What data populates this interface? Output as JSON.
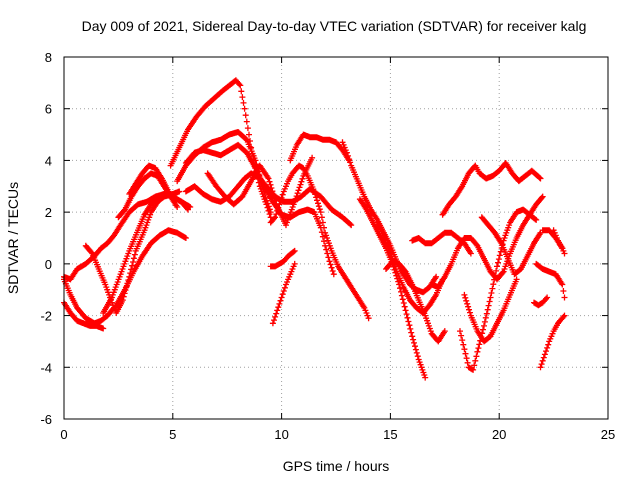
{
  "chart_data": {
    "type": "scatter",
    "title": "Day 009 of 2021, Sidereal Day-to-day VTEC variation (SDTVAR) for receiver kalg",
    "xlabel": "GPS time / hours",
    "ylabel": "SDTVAR / TECUs",
    "xlim": [
      0,
      25
    ],
    "ylim": [
      -6,
      8
    ],
    "xticks": [
      "0",
      "5",
      "10",
      "15",
      "20",
      "25"
    ],
    "yticks": [
      "-6",
      "-4",
      "-2",
      "0",
      "2",
      "4",
      "6",
      "8"
    ],
    "grid": true,
    "legend": "none",
    "marker": "plus",
    "color": "#ff0000",
    "series": [
      {
        "x": [
          0.0,
          0.3,
          0.6,
          1.0,
          1.4,
          1.7,
          2.0,
          2.3,
          2.6,
          3.0,
          3.4,
          3.8,
          4.2,
          4.6,
          5.0,
          5.4,
          5.8
        ],
        "y": [
          -0.5,
          -0.6,
          -0.2,
          0.0,
          0.3,
          0.6,
          0.8,
          1.1,
          1.5,
          2.0,
          2.3,
          2.4,
          2.6,
          2.7,
          2.6,
          2.4,
          2.2
        ]
      },
      {
        "x": [
          0.0,
          0.3,
          0.6,
          1.0,
          1.4,
          1.7,
          2.0,
          2.4,
          2.8,
          3.2,
          3.6,
          4.0,
          4.4,
          4.8,
          5.2,
          5.6
        ],
        "y": [
          -0.6,
          -1.2,
          -1.7,
          -2.1,
          -2.3,
          -2.2,
          -2.0,
          -1.6,
          -1.0,
          -0.3,
          0.3,
          0.8,
          1.1,
          1.3,
          1.2,
          1.0
        ]
      },
      {
        "x": [
          0.0,
          0.3,
          0.6,
          0.9,
          1.2,
          1.5,
          1.8
        ],
        "y": [
          -1.5,
          -1.9,
          -2.2,
          -2.3,
          -2.4,
          -2.4,
          -2.5
        ]
      },
      {
        "x": [
          1.0,
          1.3,
          1.6,
          1.9,
          2.2,
          2.4,
          2.7,
          3.0,
          3.3,
          3.7,
          4.0,
          4.3,
          4.6,
          5.0,
          5.3
        ],
        "y": [
          0.7,
          0.4,
          -0.2,
          -0.8,
          -1.5,
          -1.9,
          -1.4,
          -0.5,
          0.5,
          1.3,
          2.0,
          2.4,
          2.6,
          2.7,
          2.8
        ]
      },
      {
        "x": [
          1.8,
          2.2,
          2.6,
          3.0,
          3.4,
          3.7,
          4.0,
          4.3,
          4.6,
          5.0,
          5.4,
          5.7
        ],
        "y": [
          -1.9,
          -1.3,
          -0.4,
          0.5,
          1.3,
          1.9,
          2.3,
          2.6,
          2.7,
          2.6,
          2.4,
          2.1
        ]
      },
      {
        "x": [
          2.5,
          2.8,
          3.1,
          3.4,
          3.7,
          4.0,
          4.3,
          4.6,
          4.9,
          5.2
        ],
        "y": [
          1.8,
          2.1,
          2.6,
          3.0,
          3.3,
          3.5,
          3.4,
          3.0,
          2.6,
          2.2
        ]
      },
      {
        "x": [
          3.0,
          3.3,
          3.6,
          3.9,
          4.2,
          4.5,
          4.8
        ],
        "y": [
          2.7,
          3.1,
          3.5,
          3.8,
          3.7,
          3.3,
          2.8
        ]
      },
      {
        "x": [
          4.9,
          5.3,
          5.7,
          6.1,
          6.5,
          6.9,
          7.3,
          7.6,
          7.9,
          8.1,
          8.3,
          8.5,
          8.7,
          9.0,
          9.3,
          9.5
        ],
        "y": [
          3.8,
          4.5,
          5.2,
          5.7,
          6.1,
          6.4,
          6.7,
          6.9,
          7.1,
          6.9,
          6.0,
          5.0,
          4.0,
          3.0,
          2.3,
          1.8
        ]
      },
      {
        "x": [
          5.2,
          5.6,
          6.0,
          6.4,
          6.8,
          7.2,
          7.6,
          8.0,
          8.4,
          8.8,
          9.1,
          9.5
        ],
        "y": [
          3.2,
          3.8,
          4.2,
          4.5,
          4.7,
          4.8,
          5.0,
          5.1,
          4.8,
          4.0,
          3.0,
          2.0
        ]
      },
      {
        "x": [
          5.6,
          6.0,
          6.4,
          6.8,
          7.2,
          7.6,
          8.0,
          8.3,
          8.6,
          9.0,
          9.4,
          9.7,
          10.1,
          10.5,
          10.9,
          11.3,
          11.8,
          12.3,
          12.8,
          13.2
        ],
        "y": [
          2.8,
          3.0,
          2.7,
          2.5,
          2.4,
          2.6,
          3.0,
          3.3,
          3.5,
          3.3,
          2.9,
          2.6,
          2.4,
          2.4,
          2.6,
          2.9,
          2.6,
          2.1,
          1.8,
          1.5
        ]
      },
      {
        "x": [
          5.6,
          6.0,
          6.4,
          6.8,
          7.2,
          7.6,
          8.0,
          8.4,
          8.8,
          9.2,
          9.6,
          10.0,
          10.4,
          10.8,
          11.2,
          11.5,
          11.8,
          12.0,
          12.2,
          12.4
        ],
        "y": [
          3.9,
          4.3,
          4.4,
          4.3,
          4.2,
          4.4,
          4.6,
          4.3,
          3.7,
          3.0,
          2.4,
          1.9,
          1.8,
          2.0,
          2.1,
          2.0,
          1.4,
          0.7,
          0.1,
          -0.4
        ]
      },
      {
        "x": [
          6.6,
          7.0,
          7.4,
          7.8,
          8.2,
          8.6,
          9.0,
          9.4,
          9.8,
          10.2,
          10.6,
          11.0,
          11.4
        ],
        "y": [
          3.5,
          3.0,
          2.6,
          2.3,
          2.6,
          3.2,
          3.8,
          3.3,
          2.2,
          1.5,
          2.4,
          3.4,
          4.1
        ]
      },
      {
        "x": [
          9.5,
          9.7,
          9.9,
          10.1,
          10.3,
          10.5,
          10.8,
          11.0,
          11.2,
          11.5,
          11.8,
          12.0,
          12.3,
          12.6,
          12.9,
          13.2,
          13.5,
          13.8,
          14.0
        ],
        "y": [
          1.6,
          1.8,
          2.3,
          2.8,
          3.2,
          3.5,
          3.8,
          3.7,
          3.4,
          2.8,
          2.0,
          1.2,
          0.5,
          -0.1,
          -0.5,
          -0.9,
          -1.3,
          -1.7,
          -2.1
        ]
      },
      {
        "x": [
          10.4,
          10.7,
          11.0,
          11.3,
          11.6,
          11.9,
          12.2,
          12.5,
          12.8,
          13.1
        ],
        "y": [
          4.0,
          4.6,
          5.0,
          4.9,
          4.9,
          4.8,
          4.8,
          4.7,
          4.4,
          4.0
        ]
      },
      {
        "x": [
          9.5,
          9.7,
          9.9,
          10.1,
          10.3,
          10.6
        ],
        "y": [
          -0.1,
          -0.1,
          0.0,
          0.1,
          0.3,
          0.5
        ]
      },
      {
        "x": [
          9.6,
          9.8,
          10.0,
          10.2,
          10.4,
          10.6
        ],
        "y": [
          -2.3,
          -1.8,
          -1.3,
          -0.8,
          -0.4,
          0.0
        ]
      },
      {
        "x": [
          12.8,
          13.0,
          13.2,
          13.5,
          13.8,
          14.1,
          14.4,
          14.7,
          15.0,
          15.3,
          15.6,
          15.9,
          16.2,
          16.5,
          16.8,
          17.1
        ],
        "y": [
          4.7,
          4.3,
          3.8,
          3.2,
          2.6,
          2.1,
          1.7,
          1.2,
          0.7,
          0.1,
          -0.4,
          -0.8,
          -1.0,
          -1.1,
          -0.9,
          -0.5
        ]
      },
      {
        "x": [
          13.6,
          13.9,
          14.2,
          14.5,
          14.8,
          15.1,
          15.4,
          15.7,
          16.0,
          16.3,
          16.6
        ],
        "y": [
          2.5,
          2.1,
          1.6,
          1.1,
          0.6,
          0.0,
          -0.8,
          -1.8,
          -2.8,
          -3.7,
          -4.4
        ]
      },
      {
        "x": [
          14.4,
          14.7,
          15.0,
          15.3,
          15.6,
          15.9,
          16.2,
          16.5,
          16.8,
          17.1,
          17.4
        ],
        "y": [
          1.6,
          1.0,
          0.4,
          -0.3,
          -0.9,
          -1.4,
          -1.7,
          -1.9,
          -1.6,
          -1.2,
          -0.6
        ]
      },
      {
        "x": [
          14.8,
          15.1,
          15.4,
          15.7,
          16.0,
          16.3,
          16.6,
          16.9,
          17.2,
          17.5
        ],
        "y": [
          -0.2,
          0.1,
          0.0,
          -0.3,
          -0.8,
          -1.4,
          -2.0,
          -2.7,
          -3.0,
          -2.6
        ]
      },
      {
        "x": [
          16.0,
          16.3,
          16.6,
          16.9,
          17.2,
          17.5,
          17.8,
          18.1,
          18.4,
          18.7
        ],
        "y": [
          0.9,
          1.0,
          0.8,
          0.8,
          1.0,
          1.2,
          1.2,
          1.0,
          0.8,
          0.4
        ]
      },
      {
        "x": [
          16.9,
          17.2,
          17.5,
          17.8,
          18.1,
          18.4,
          18.7,
          19.0,
          19.3,
          19.6,
          19.9,
          20.2,
          20.5,
          20.8,
          21.1,
          21.4,
          21.7,
          22.0
        ],
        "y": [
          -0.8,
          -0.9,
          -0.5,
          0.0,
          0.6,
          1.0,
          1.0,
          0.7,
          0.2,
          -0.3,
          -0.6,
          -0.3,
          0.4,
          1.0,
          1.5,
          1.9,
          2.3,
          2.6
        ]
      },
      {
        "x": [
          17.4,
          17.7,
          18.0,
          18.3,
          18.6,
          18.9,
          19.1,
          19.4,
          19.7,
          20.0,
          20.3,
          20.6,
          20.9,
          21.2,
          21.5,
          21.9
        ],
        "y": [
          1.9,
          2.3,
          2.6,
          3.0,
          3.5,
          3.8,
          3.5,
          3.3,
          3.4,
          3.6,
          3.9,
          3.5,
          3.2,
          3.4,
          3.6,
          3.3
        ]
      },
      {
        "x": [
          18.2,
          18.4,
          18.6,
          18.8,
          19.0,
          19.3,
          19.6,
          19.9,
          20.2,
          20.5,
          20.8,
          21.1,
          21.4,
          21.7
        ],
        "y": [
          -2.6,
          -3.3,
          -4.0,
          -4.1,
          -3.4,
          -2.4,
          -1.3,
          -0.1,
          0.9,
          1.6,
          2.0,
          2.1,
          1.9,
          1.7
        ]
      },
      {
        "x": [
          18.4,
          18.7,
          19.0,
          19.3,
          19.6,
          19.9,
          20.2,
          20.5,
          20.8
        ],
        "y": [
          -1.2,
          -2.0,
          -2.6,
          -3.0,
          -2.8,
          -2.3,
          -1.8,
          -1.2,
          -0.6
        ]
      },
      {
        "x": [
          19.2,
          19.5,
          19.8,
          20.1,
          20.4,
          20.7,
          21.0,
          21.3,
          21.6,
          21.9
        ],
        "y": [
          1.8,
          1.5,
          1.2,
          0.8,
          0.2,
          -0.4,
          -0.2,
          0.3,
          0.8,
          1.2
        ]
      },
      {
        "x": [
          21.6,
          21.8,
          22.0,
          22.2
        ],
        "y": [
          -1.5,
          -1.6,
          -1.5,
          -1.3
        ]
      },
      {
        "x": [
          21.7,
          22.0,
          22.3,
          22.6,
          22.9,
          23.0
        ],
        "y": [
          0.0,
          -0.2,
          -0.3,
          -0.4,
          -0.8,
          -1.3
        ]
      },
      {
        "x": [
          21.9,
          22.1,
          22.3,
          22.5,
          22.7,
          22.9,
          23.0
        ],
        "y": [
          -4.0,
          -3.5,
          -3.0,
          -2.6,
          -2.3,
          -2.1,
          -2.0
        ]
      },
      {
        "x": [
          22.0,
          22.3,
          22.6,
          22.9
        ],
        "y": [
          1.3,
          1.3,
          1.0,
          0.6
        ]
      },
      {
        "x": [
          22.5,
          22.7,
          22.9,
          23.0
        ],
        "y": [
          1.3,
          0.9,
          0.6,
          0.4
        ]
      }
    ]
  }
}
